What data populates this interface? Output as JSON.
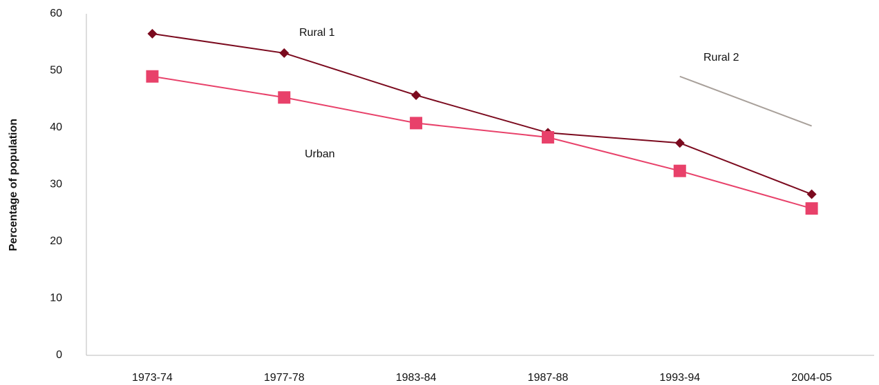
{
  "chart_data": {
    "type": "line",
    "y_label": "Percentage of population",
    "categories": [
      "1973-74",
      "1977-78",
      "1983-84",
      "1987-88",
      "1993-94",
      "2004-05"
    ],
    "series": [
      {
        "name": "Rural 1",
        "color": "#7b0a1e",
        "marker": "diamond",
        "values": [
          56.5,
          53.1,
          45.7,
          39.1,
          37.3,
          28.3
        ]
      },
      {
        "name": "Urban",
        "color": "#e8416a",
        "marker": "square",
        "values": [
          49.0,
          45.3,
          40.8,
          38.3,
          32.4,
          25.8
        ]
      },
      {
        "name": "Rural 2",
        "color": "#a8a09a",
        "marker": "none",
        "values": [
          null,
          null,
          null,
          null,
          49.0,
          40.3
        ]
      }
    ],
    "ylim": [
      0,
      60
    ],
    "yticks": [
      0,
      10,
      20,
      30,
      40,
      50,
      60
    ],
    "grid": false
  }
}
